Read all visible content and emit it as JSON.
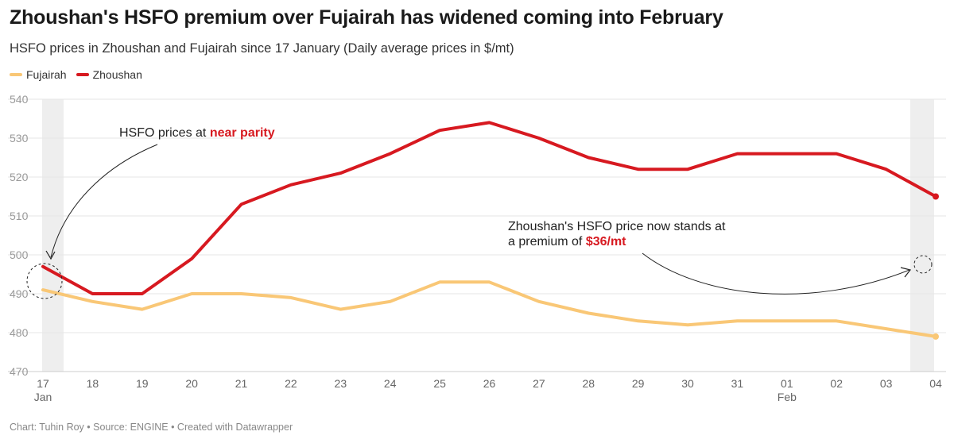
{
  "header": {
    "title": "Zhoushan's HSFO premium over Fujairah has widened coming into February",
    "subtitle": "HSFO prices in Zhoushan and Fujairah since 17 January (Daily average prices in $/mt)"
  },
  "legend": [
    {
      "name": "Fujairah",
      "color": "#f9c776"
    },
    {
      "name": "Zhoushan",
      "color": "#d71920"
    }
  ],
  "footer": {
    "credit": "Chart: Tuhin Roy • Source: ENGINE • Created with Datawrapper"
  },
  "chart_data": {
    "type": "line",
    "title": "Zhoushan's HSFO premium over Fujairah has widened coming into February",
    "x": [
      "17",
      "18",
      "19",
      "20",
      "21",
      "22",
      "23",
      "24",
      "25",
      "26",
      "27",
      "28",
      "29",
      "30",
      "31",
      "01",
      "02",
      "03",
      "04"
    ],
    "x_sublabels": {
      "17": "Jan",
      "01": "Feb"
    },
    "y_ticks": [
      470,
      480,
      490,
      500,
      510,
      520,
      530,
      540
    ],
    "ylim": [
      470,
      540
    ],
    "grid": true,
    "legend_position": "top-left",
    "series": [
      {
        "name": "Fujairah",
        "color": "#f9c776",
        "values": [
          491,
          488,
          486,
          490,
          490,
          489,
          486,
          488,
          493,
          493,
          488,
          485,
          483,
          482,
          483,
          483,
          483,
          481,
          479
        ]
      },
      {
        "name": "Zhoushan",
        "color": "#d71920",
        "values": [
          497,
          490,
          490,
          499,
          513,
          518,
          521,
          526,
          532,
          534,
          530,
          525,
          522,
          522,
          526,
          526,
          526,
          522,
          515
        ]
      }
    ],
    "annotations": [
      {
        "text": "HSFO prices at ",
        "highlight": "near parity"
      },
      {
        "line1": "Zhoushan's HSFO price now stands at",
        "line2": "a premium of ",
        "highlight": "$36/mt"
      }
    ]
  }
}
